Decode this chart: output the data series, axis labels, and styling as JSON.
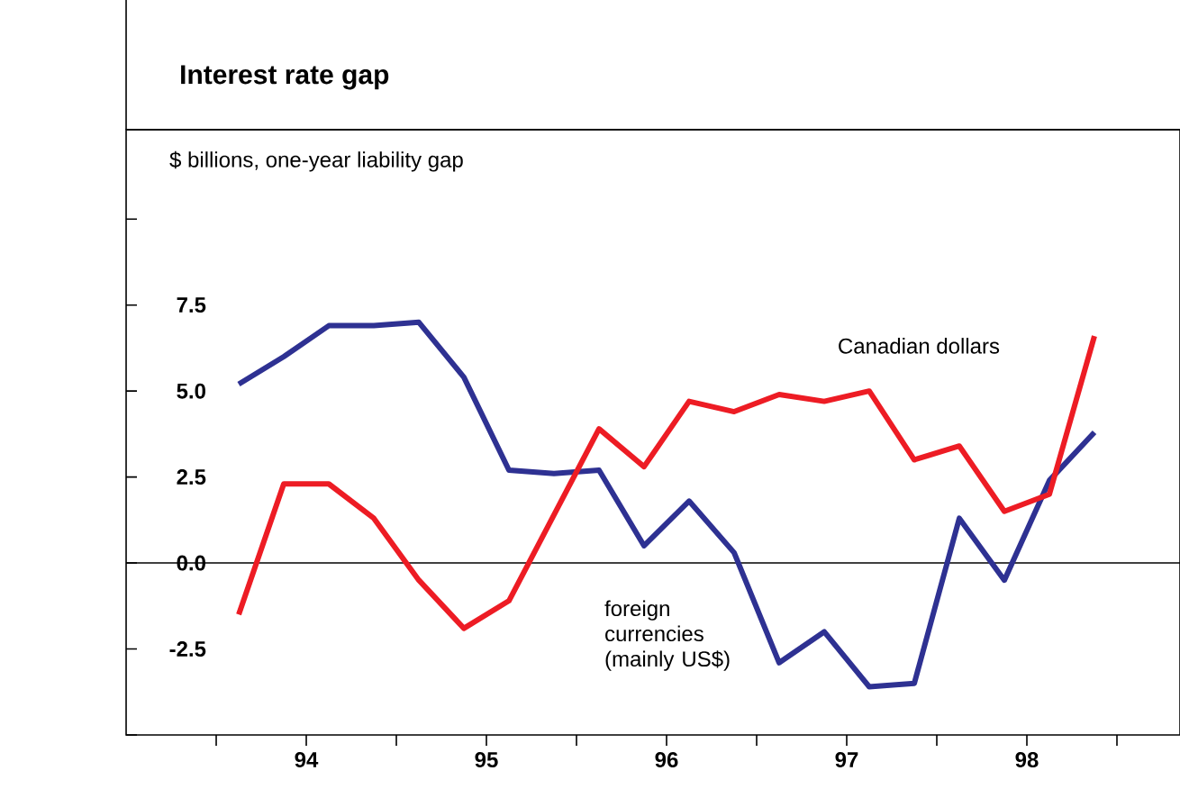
{
  "chart_data": {
    "type": "line",
    "title": "Interest rate gap",
    "ylabel": "$ billions, one-year liability gap",
    "x": [
      93.625,
      93.875,
      94.125,
      94.375,
      94.625,
      94.875,
      95.125,
      95.375,
      95.625,
      95.875,
      96.125,
      96.375,
      96.625,
      96.875,
      97.125,
      97.375,
      97.625,
      97.875,
      98.125,
      98.375
    ],
    "series": [
      {
        "name": "foreign currencies (mainly US$)",
        "color": "#2e3192",
        "values": [
          5.2,
          6.0,
          6.9,
          6.9,
          7.0,
          5.4,
          2.7,
          2.6,
          2.7,
          0.5,
          1.8,
          0.3,
          -2.9,
          -2.0,
          -3.6,
          -3.5,
          1.3,
          -0.5,
          2.4,
          3.8
        ]
      },
      {
        "name": "Canadian dollars",
        "color": "#ed1c24",
        "values": [
          -1.5,
          2.3,
          2.3,
          1.3,
          -0.5,
          -1.9,
          -1.1,
          1.4,
          3.9,
          2.8,
          4.7,
          4.4,
          4.9,
          4.7,
          5.0,
          3.0,
          3.4,
          1.5,
          2.0,
          6.6
        ]
      }
    ],
    "xlim": [
      93.0,
      98.85
    ],
    "xticks": [
      {
        "value": 93.5,
        "label": null
      },
      94,
      {
        "value": 94.5,
        "label": null
      },
      95,
      {
        "value": 95.5,
        "label": null
      },
      96,
      {
        "value": 96.5,
        "label": null
      },
      97,
      {
        "value": 97.5,
        "label": null
      },
      98,
      {
        "value": 98.5,
        "label": null
      }
    ],
    "ylim": [
      -5,
      12.6
    ],
    "yticks": [
      {
        "value": -5,
        "label": null
      },
      {
        "value": -2.5,
        "label": "-2.5"
      },
      {
        "value": 0,
        "label": "0.0"
      },
      {
        "value": 2.5,
        "label": "2.5"
      },
      {
        "value": 5,
        "label": "5.0"
      },
      {
        "value": 7.5,
        "label": "7.5"
      },
      {
        "value": 10,
        "label": null
      }
    ],
    "ref_lines": [
      {
        "axis": "y",
        "value": 0
      }
    ],
    "line_style": "solid",
    "marker": "none",
    "grid": false
  }
}
